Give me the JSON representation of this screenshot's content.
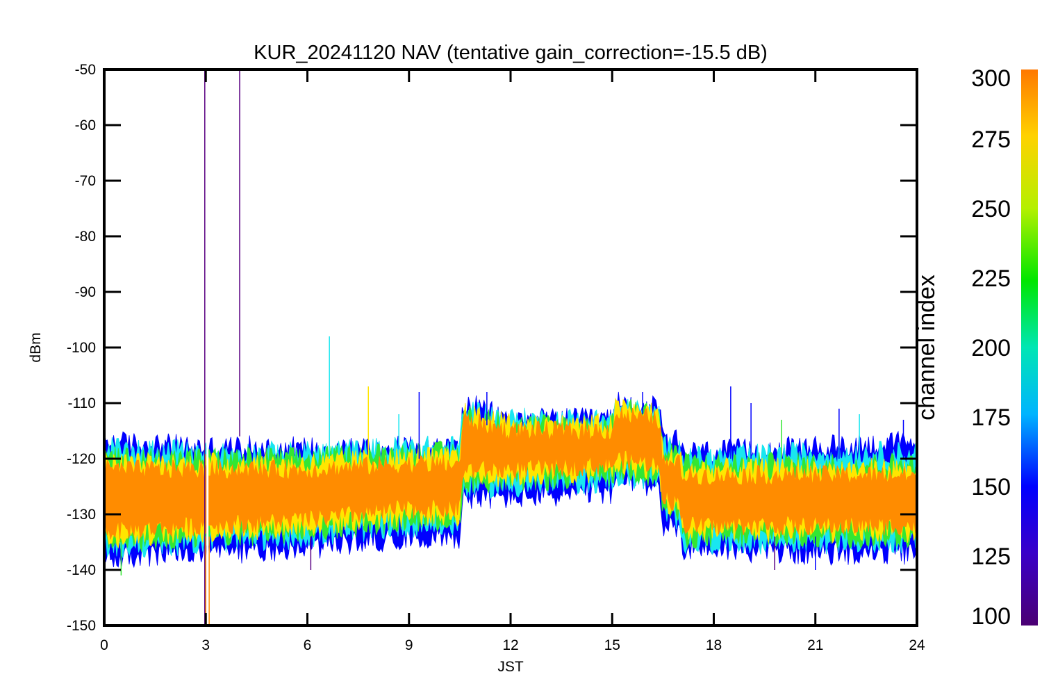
{
  "chart_data": {
    "type": "line",
    "title": "KUR_20241120 NAV (tentative gain_correction=-15.5 dB)",
    "xlabel": "JST",
    "ylabel": "dBm",
    "xlim": [
      0,
      24
    ],
    "ylim": [
      -150,
      -50
    ],
    "xticks": [
      "0",
      "3",
      "6",
      "9",
      "12",
      "15",
      "18",
      "21",
      "24"
    ],
    "yticks": [
      "-50",
      "-60",
      "-70",
      "-80",
      "-90",
      "-100",
      "-110",
      "-120",
      "-130",
      "-140",
      "-150"
    ],
    "grid": false,
    "colorbar": {
      "label": "channel index",
      "range": [
        100,
        300
      ],
      "ticks": [
        "100",
        "125",
        "150",
        "175",
        "200",
        "225",
        "250",
        "275",
        "300"
      ],
      "colormap": "rainbow (purple-blue-cyan-green-yellow-orange)"
    },
    "bands": [
      {
        "name": "outer envelope (channels ~125-150)",
        "color": "#0000ff",
        "x": [
          0,
          3,
          6,
          9,
          10.5,
          10.6,
          12,
          15,
          15.1,
          16.4,
          16.5,
          17,
          17.1,
          21,
          24
        ],
        "upper": [
          -117,
          -118,
          -118,
          -118,
          -118,
          -110,
          -113,
          -113,
          -110,
          -111,
          -117,
          -117,
          -119,
          -118,
          -117
        ],
        "lower": [
          -138,
          -137,
          -136,
          -134,
          -134,
          -127,
          -127,
          -126,
          -124,
          -125,
          -132,
          -133,
          -136,
          -137,
          -137
        ]
      },
      {
        "name": "cyan band (channels ~175)",
        "color": "#19e6f0",
        "x": [
          0,
          3,
          6,
          9,
          10.5,
          10.6,
          12,
          15,
          15.1,
          16.4,
          16.5,
          17,
          17.1,
          21,
          24
        ],
        "upper": [
          -118,
          -119,
          -119,
          -118,
          -118,
          -111,
          -113,
          -113,
          -111,
          -112,
          -118,
          -118,
          -120,
          -119,
          -119
        ],
        "lower": [
          -136,
          -135,
          -134,
          -132,
          -132,
          -125,
          -125,
          -124,
          -123,
          -124,
          -130,
          -131,
          -135,
          -135,
          -135
        ]
      },
      {
        "name": "green band (channels ~225)",
        "color": "#33e633",
        "x": [
          0,
          3,
          6,
          9,
          10.5,
          10.6,
          12,
          15,
          15.1,
          16.4,
          16.5,
          17,
          17.1,
          21,
          24
        ],
        "upper": [
          -120,
          -120,
          -120,
          -119,
          -119,
          -112,
          -114,
          -114,
          -111,
          -112,
          -119,
          -119,
          -121,
          -121,
          -121
        ],
        "lower": [
          -135,
          -134,
          -133,
          -131,
          -131,
          -124,
          -124,
          -123,
          -122,
          -123,
          -129,
          -130,
          -134,
          -134,
          -134
        ]
      },
      {
        "name": "yellow band (channels ~275)",
        "color": "#ffe600",
        "x": [
          0,
          3,
          6,
          9,
          10.5,
          10.6,
          12,
          15,
          15.1,
          16.4,
          16.5,
          17,
          17.1,
          21,
          24
        ],
        "upper": [
          -121,
          -121,
          -121,
          -120,
          -120,
          -112,
          -114,
          -114,
          -111,
          -112,
          -120,
          -120,
          -122,
          -122,
          -122
        ],
        "lower": [
          -134,
          -133,
          -132,
          -130,
          -130,
          -123,
          -123,
          -122,
          -121,
          -122,
          -128,
          -129,
          -133,
          -133,
          -133
        ]
      },
      {
        "name": "orange core (channels ~300)",
        "color": "#ff8c00",
        "x": [
          0,
          3,
          6,
          9,
          10.5,
          10.6,
          12,
          15,
          15.1,
          16.4,
          16.5,
          17,
          17.1,
          21,
          24
        ],
        "upper": [
          -122,
          -122,
          -122,
          -121,
          -121,
          -113,
          -115,
          -115,
          -112,
          -113,
          -121,
          -121,
          -123,
          -123,
          -123
        ],
        "lower": [
          -133,
          -132,
          -131,
          -129,
          -129,
          -122,
          -122,
          -121,
          -120,
          -121,
          -127,
          -128,
          -132,
          -132,
          -132
        ]
      }
    ],
    "spikes": [
      {
        "x": 2.97,
        "y1": -150,
        "y2": -50,
        "color": "#5a0082"
      },
      {
        "x": 4.0,
        "y1": -116,
        "y2": -50,
        "color": "#5a0082"
      },
      {
        "x": 3.0,
        "y1": -150,
        "y2": -134,
        "color": "#ff8c00"
      },
      {
        "x": 3.1,
        "y1": -150,
        "y2": -134,
        "color": "#ff8c00"
      },
      {
        "x": 6.65,
        "y1": -120,
        "y2": -98,
        "color": "#19e6f0"
      },
      {
        "x": 7.8,
        "y1": -121,
        "y2": -107,
        "color": "#ffe600"
      },
      {
        "x": 8.7,
        "y1": -121,
        "y2": -112,
        "color": "#19e6f0"
      },
      {
        "x": 9.3,
        "y1": -120,
        "y2": -108,
        "color": "#0000ff"
      },
      {
        "x": 11.3,
        "y1": -114,
        "y2": -108,
        "color": "#0000ff"
      },
      {
        "x": 15.9,
        "y1": -112,
        "y2": -108,
        "color": "#0000ff"
      },
      {
        "x": 18.5,
        "y1": -120,
        "y2": -107,
        "color": "#0000ff"
      },
      {
        "x": 19.1,
        "y1": -120,
        "y2": -110,
        "color": "#0000ff"
      },
      {
        "x": 20.0,
        "y1": -120,
        "y2": -113,
        "color": "#33e633"
      },
      {
        "x": 21.7,
        "y1": -120,
        "y2": -111,
        "color": "#0000ff"
      },
      {
        "x": 22.3,
        "y1": -120,
        "y2": -112,
        "color": "#19e6f0"
      },
      {
        "x": 23.6,
        "y1": -120,
        "y2": -113,
        "color": "#0000ff"
      },
      {
        "x": 19.8,
        "y1": -134,
        "y2": -140,
        "color": "#5a0082"
      },
      {
        "x": 21.0,
        "y1": -134,
        "y2": -140,
        "color": "#0000ff"
      },
      {
        "x": 6.1,
        "y1": -134,
        "y2": -140,
        "color": "#5a0082"
      },
      {
        "x": 0.5,
        "y1": -135,
        "y2": -141,
        "color": "#33e633"
      }
    ]
  }
}
